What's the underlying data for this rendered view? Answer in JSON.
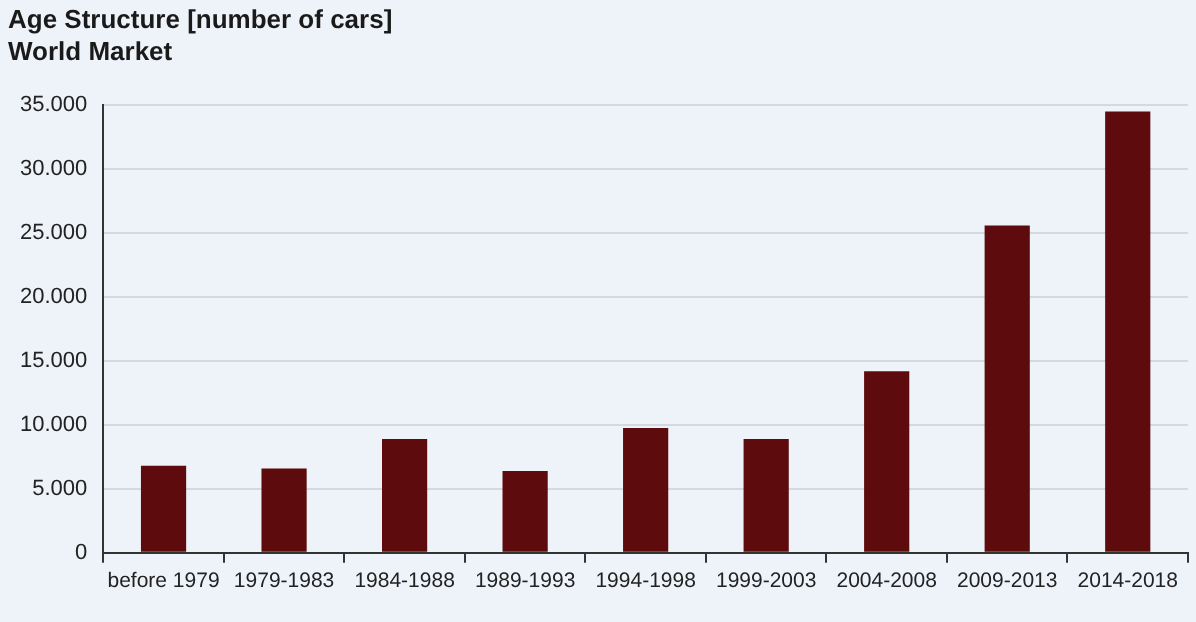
{
  "chart_data": {
    "type": "bar",
    "title": "Age Structure [number of cars]",
    "subtitle": "World Market",
    "categories": [
      "before 1979",
      "1979-1983",
      "1984-1988",
      "1989-1993",
      "1994-1998",
      "1999-2003",
      "2004-2008",
      "2009-2013",
      "2014-2018"
    ],
    "values": [
      6800,
      6600,
      8900,
      6400,
      9750,
      8900,
      14200,
      25600,
      34500
    ],
    "color": "#5e0b0d",
    "ylim": [
      0,
      35000
    ],
    "yticks": [
      0,
      {
        "value": 5000,
        "label": "5.000"
      },
      {
        "value": 10000,
        "label": "10.000"
      },
      {
        "value": 15000,
        "label": "15.000"
      },
      {
        "value": 20000,
        "label": "20.000"
      },
      {
        "value": 25000,
        "label": "25.000"
      },
      {
        "value": 30000,
        "label": "30.000"
      },
      {
        "value": 35000,
        "label": "35.000"
      }
    ],
    "grid": "y",
    "legend": false
  }
}
